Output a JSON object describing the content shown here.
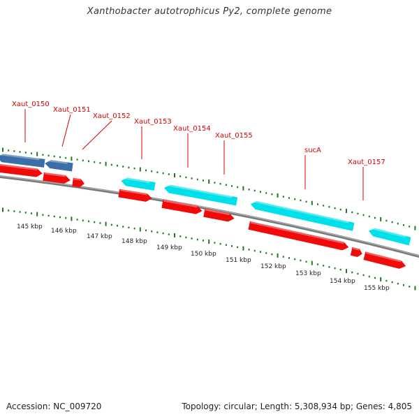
{
  "title": "Xanthobacter autotrophicus Py2, complete genome",
  "footer": {
    "accession": "Accession: NC_009720",
    "summary": "Topology: circular; Length: 5,308,934 bp; Genes: 4,805"
  },
  "colors": {
    "forward_cds": "#f00a0a",
    "reverse_cds": "#00e0ea",
    "highlight_cds": "#3a6ea6",
    "backbone": "#7a7a7a",
    "ticks": "#1e7a1e",
    "labels": "#d40000"
  },
  "labels": [
    "Xaut_0150",
    "Xaut_0151",
    "Xaut_0152",
    "Xaut_0153",
    "Xaut_0154",
    "Xaut_0155",
    "sucA",
    "Xaut_0157"
  ],
  "scale": [
    "145 kbp",
    "146 kbp",
    "147 kbp",
    "148 kbp",
    "149 kbp",
    "150 kbp",
    "151 kbp",
    "152 kbp",
    "153 kbp",
    "154 kbp",
    "155 kbp"
  ]
}
